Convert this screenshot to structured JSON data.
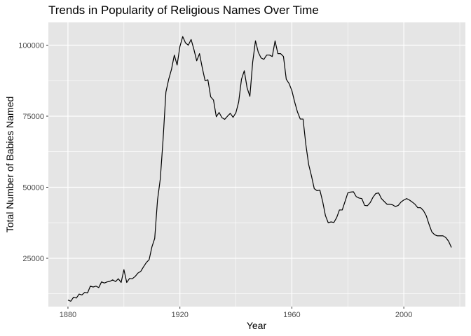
{
  "chart_data": {
    "type": "line",
    "title": "Trends in Popularity of Religious Names Over Time",
    "xlabel": "Year",
    "ylabel": "Total Number of Babies Named",
    "xlim": [
      1873,
      2022
    ],
    "ylim": [
      8000,
      108000
    ],
    "x_ticks": [
      1880,
      1920,
      1960,
      2000
    ],
    "y_ticks": [
      25000,
      50000,
      75000,
      100000
    ],
    "y_tick_labels": [
      "25000",
      "50000",
      "75000",
      "100000"
    ],
    "grid": true,
    "legend": "none",
    "colors": {
      "panel": "#e5e5e5",
      "grid": "#ffffff",
      "line": "#000000",
      "tick": "#333333"
    },
    "x": [
      1880,
      1881,
      1882,
      1883,
      1884,
      1885,
      1886,
      1887,
      1888,
      1889,
      1890,
      1891,
      1892,
      1893,
      1894,
      1895,
      1896,
      1897,
      1898,
      1899,
      1900,
      1901,
      1902,
      1903,
      1904,
      1905,
      1906,
      1907,
      1908,
      1909,
      1910,
      1911,
      1912,
      1913,
      1914,
      1915,
      1916,
      1917,
      1918,
      1919,
      1920,
      1921,
      1922,
      1923,
      1924,
      1925,
      1926,
      1927,
      1928,
      1929,
      1930,
      1931,
      1932,
      1933,
      1934,
      1935,
      1936,
      1937,
      1938,
      1939,
      1940,
      1941,
      1942,
      1943,
      1944,
      1945,
      1946,
      1947,
      1948,
      1949,
      1950,
      1951,
      1952,
      1953,
      1954,
      1955,
      1956,
      1957,
      1958,
      1959,
      1960,
      1961,
      1962,
      1963,
      1964,
      1965,
      1966,
      1967,
      1968,
      1969,
      1970,
      1971,
      1972,
      1973,
      1974,
      1975,
      1976,
      1977,
      1978,
      1979,
      1980,
      1981,
      1982,
      1983,
      1984,
      1985,
      1986,
      1987,
      1988,
      1989,
      1990,
      1991,
      1992,
      1993,
      1994,
      1995,
      1996,
      1997,
      1998,
      1999,
      2000,
      2001,
      2002,
      2003,
      2004,
      2005,
      2006,
      2007,
      2008,
      2009,
      2010,
      2011,
      2012,
      2013,
      2014,
      2015,
      2016,
      2017
    ],
    "values": [
      10300,
      9900,
      11300,
      11000,
      12400,
      12100,
      13000,
      12800,
      15200,
      14900,
      15200,
      14700,
      16700,
      16300,
      16700,
      16900,
      17400,
      16800,
      17800,
      16500,
      21000,
      16500,
      17900,
      17800,
      18600,
      19800,
      20400,
      22000,
      23500,
      24500,
      29000,
      32000,
      45500,
      53000,
      67000,
      83500,
      88000,
      91500,
      96500,
      93000,
      99500,
      103000,
      100800,
      100000,
      102000,
      98500,
      94500,
      97000,
      92000,
      87500,
      87800,
      81800,
      80700,
      74800,
      76300,
      74500,
      73900,
      75000,
      76000,
      74600,
      76200,
      80000,
      88000,
      91000,
      85000,
      82000,
      94000,
      101500,
      97500,
      95500,
      95000,
      96500,
      96500,
      96000,
      101500,
      97000,
      97000,
      96000,
      88000,
      86500,
      84000,
      80000,
      76500,
      74000,
      74000,
      65000,
      58000,
      54000,
      49500,
      48800,
      49000,
      45000,
      40000,
      37500,
      37800,
      37600,
      39300,
      42000,
      42000,
      45000,
      48000,
      48300,
      48400,
      46700,
      46200,
      46000,
      43600,
      43500,
      44600,
      46500,
      47800,
      48000,
      46000,
      45000,
      44000,
      44000,
      43800,
      43200,
      43600,
      44800,
      45500,
      46000,
      45500,
      44800,
      44000,
      42800,
      42800,
      41800,
      40000,
      37000,
      34300,
      33300,
      32900,
      32900,
      32900,
      32300,
      31000,
      28800
    ]
  }
}
